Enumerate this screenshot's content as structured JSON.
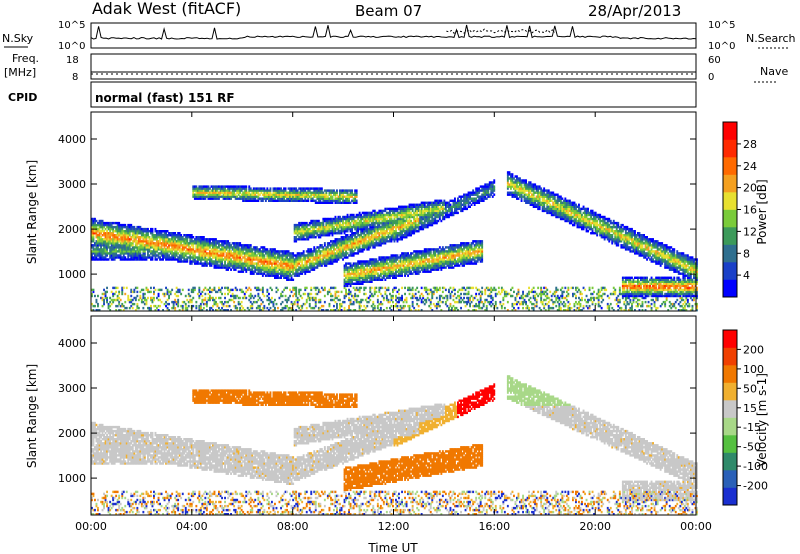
{
  "header": {
    "station": "Adak West (fitACF)",
    "beam": "Beam 07",
    "date": "28/Apr/2013"
  },
  "noise_panel": {
    "left_label": "N.Sky",
    "right_label": "N.Search",
    "tick_top": "10^5",
    "tick_bottom": "10^0"
  },
  "freq_panel": {
    "left_label_line1": "Freq.",
    "left_label_line2": "[MHz]",
    "left_tick_top": "18",
    "left_tick_bottom": "8",
    "right_tick_top": "60",
    "right_tick_bottom": "0",
    "right_label": "Nave"
  },
  "cpid_panel": {
    "left_label": "CPID",
    "value": "normal (fast) 151 RF"
  },
  "chart_data": [
    {
      "type": "heatmap",
      "quantity": "power",
      "ylabel": "Slant Range [km]",
      "yticks": [
        1000,
        2000,
        3000,
        4000
      ],
      "ylim": [
        180,
        4600
      ],
      "xlim": [
        0,
        24
      ],
      "colorbar": {
        "label": "Power [dB]",
        "ticks": [
          "28",
          "24",
          "20",
          "16",
          "12",
          "8",
          "4"
        ],
        "colors": [
          "#0000ff",
          "#1a40c8",
          "#2f6f8f",
          "#3c9a5a",
          "#7acb3a",
          "#e8e030",
          "#f4a020",
          "#ff6a00",
          "#ff2a00",
          "#ff0000"
        ],
        "range": [
          0,
          30
        ]
      }
    },
    {
      "type": "heatmap",
      "quantity": "velocity",
      "ylabel": "Slant Range [km]",
      "yticks": [
        1000,
        2000,
        3000,
        4000
      ],
      "ylim": [
        180,
        4600
      ],
      "xlim": [
        0,
        24
      ],
      "colorbar": {
        "label": "Velocity [m s-1]",
        "ticks": [
          "200",
          "100",
          "50",
          "15",
          "-15",
          "-50",
          "-100",
          "-200"
        ],
        "colors": [
          "#1a2fd0",
          "#2a60b8",
          "#2f8a6a",
          "#55c040",
          "#a8d888",
          "#c8c8c8",
          "#f0b030",
          "#f07800",
          "#f04000",
          "#ff0000"
        ]
      }
    }
  ],
  "xaxis": {
    "label": "Time UT",
    "ticks": [
      "00:00",
      "04:00",
      "08:00",
      "12:00",
      "16:00",
      "20:00",
      "00:00"
    ]
  }
}
